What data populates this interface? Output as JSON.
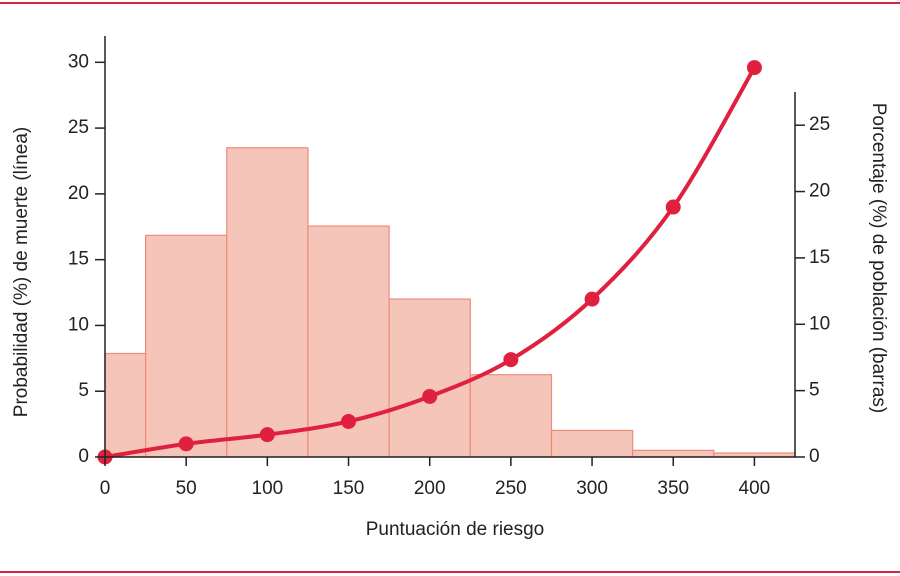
{
  "chart_data": {
    "type": "combo",
    "x_label": "Puntuación de riesgo",
    "y_label": "Probabilidad (%) de muerte (línea)",
    "y2_label": "Porcentaje (%) de población (barras)",
    "xlim": [
      0,
      425
    ],
    "xticks": [
      0,
      50,
      100,
      150,
      200,
      250,
      300,
      350,
      400
    ],
    "ylim": [
      0,
      32
    ],
    "yticks": [
      0,
      5,
      10,
      15,
      20,
      25,
      30
    ],
    "y2lim": [
      0,
      27.5
    ],
    "y2ticks": [
      0,
      5,
      10,
      15,
      20,
      25
    ],
    "series": [
      {
        "type": "histogram",
        "axis": "y2",
        "color": "#f6c5b9",
        "edge_color": "#ee8b7b",
        "bins": [
          0,
          25,
          75,
          125,
          175,
          225,
          275,
          325,
          375,
          425
        ],
        "values": [
          7.8,
          16.7,
          23.3,
          17.4,
          11.9,
          6.2,
          2.0,
          0.5,
          0.3
        ]
      },
      {
        "type": "line",
        "color": "#e0203f",
        "x": [
          0,
          50,
          100,
          150,
          200,
          250,
          300,
          350,
          400
        ],
        "values": [
          0,
          1.0,
          1.7,
          2.7,
          4.6,
          7.4,
          12.0,
          19.0,
          29.6
        ]
      }
    ]
  }
}
